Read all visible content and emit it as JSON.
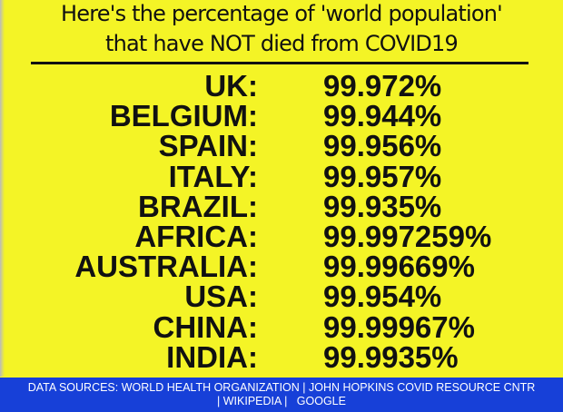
{
  "title_line1": "Here's the percentage of 'world population'",
  "title_line2": "that have NOT died from COVID19",
  "rows": [
    {
      "country": "UK:",
      "value": "99.972%"
    },
    {
      "country": "BELGIUM:",
      "value": "99.944%"
    },
    {
      "country": "SPAIN:",
      "value": "99.956%"
    },
    {
      "country": "ITALY:",
      "value": "99.957%"
    },
    {
      "country": "BRAZIL:",
      "value": "99.935%"
    },
    {
      "country": "AFRICA:",
      "value": "99.997259%"
    },
    {
      "country": "AUSTRALIA:",
      "value": "99.99669%"
    },
    {
      "country": "USA:",
      "value": "99.954%"
    },
    {
      "country": "CHINA:",
      "value": "99.99967%"
    },
    {
      "country": "INDIA:",
      "value": "99.9935%"
    }
  ],
  "footer_line1": "DATA SOURCES: WORLD HEALTH ORGANIZATION | JOHN HOPKINS COVID RESOURCE CNTR",
  "footer_line2": "| WIKIPEDIA |   GOOGLE",
  "colors": {
    "background": "#f4f426",
    "footer": "#1740d8",
    "text": "#111111"
  }
}
